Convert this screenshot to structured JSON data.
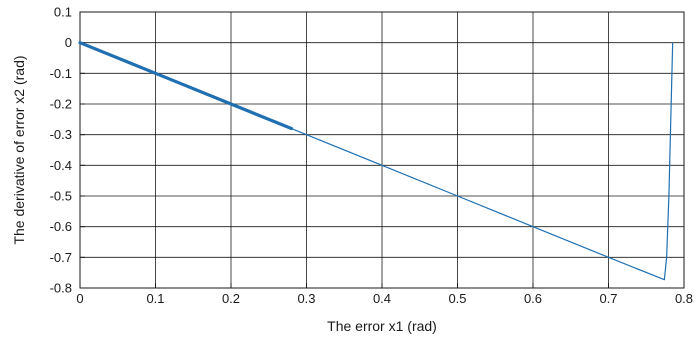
{
  "chart_data": {
    "type": "line",
    "title": "",
    "xlabel": "The error x1 (rad)",
    "ylabel": "The derivative of error x2 (rad)",
    "xlim": [
      0,
      0.8
    ],
    "ylim": [
      -0.8,
      0.1
    ],
    "xticks": [
      "0",
      "0.1",
      "0.2",
      "0.3",
      "0.4",
      "0.5",
      "0.6",
      "0.7",
      "0.8"
    ],
    "yticks": [
      "0.1",
      "0",
      "-0.1",
      "-0.2",
      "-0.3",
      "-0.4",
      "-0.5",
      "-0.6",
      "-0.7",
      "-0.8"
    ],
    "grid": true,
    "line_color": "#1f6fb2",
    "series": [
      {
        "x": [
          0.785,
          0.784,
          0.782,
          0.78,
          0.777,
          0.774,
          0.7,
          0.6,
          0.5,
          0.4,
          0.3,
          0.28,
          0.2,
          0.1,
          0.0
        ],
        "y": [
          0.0,
          -0.1,
          -0.3,
          -0.5,
          -0.7,
          -0.773,
          -0.7,
          -0.6,
          -0.5,
          -0.4,
          -0.3,
          -0.28,
          -0.2,
          -0.1,
          0.0
        ]
      }
    ]
  }
}
